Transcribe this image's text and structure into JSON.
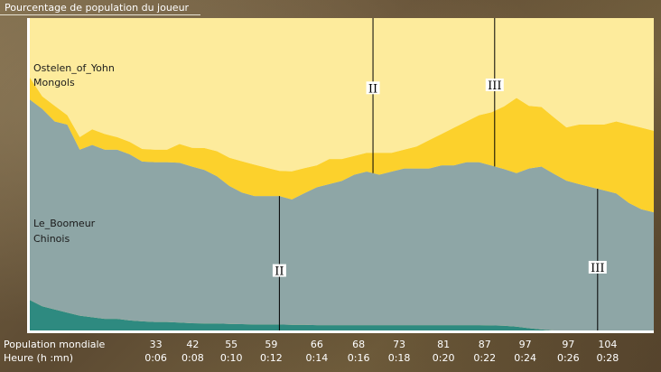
{
  "title": "Pourcentage de population du joueur",
  "chart_data": {
    "type": "area",
    "stacked": true,
    "ylim": [
      0,
      100
    ],
    "grid": false,
    "colors": {
      "background": "#fdeb9c",
      "band_light": "#fdeb9c",
      "band_gold": "#fcd12c",
      "band_gray": "#8ea6a6",
      "band_teal": "#2e8a80",
      "axis": "#ffffff",
      "marker": "#000000"
    },
    "x": [
      0,
      2,
      4,
      6,
      8,
      10,
      12,
      14,
      16,
      18,
      20,
      22,
      24,
      26,
      28,
      30,
      32,
      34,
      36,
      38,
      40,
      42,
      44,
      46,
      48,
      50,
      52,
      54,
      56,
      58,
      60,
      62,
      64,
      66,
      68,
      70,
      72,
      74,
      76,
      78,
      80,
      82,
      84,
      86,
      88,
      90,
      92,
      94,
      96,
      98,
      100
    ],
    "series": [
      {
        "color_key": "band_teal",
        "values": [
          10,
          8,
          7,
          6,
          5,
          4.5,
          4,
          4,
          3.5,
          3.2,
          3,
          3,
          2.8,
          2.6,
          2.5,
          2.5,
          2.4,
          2.3,
          2.2,
          2.2,
          2.2,
          2.1,
          2.1,
          2,
          2,
          2,
          2,
          2,
          2,
          2,
          2,
          2,
          2,
          2,
          2,
          2,
          2,
          1.9,
          1.8,
          1.5,
          1,
          0.6,
          0.3,
          0.1,
          0,
          0,
          0,
          0,
          0,
          0,
          0
        ]
      },
      {
        "color_key": "band_gray",
        "values": [
          64,
          63,
          60,
          60,
          53,
          55,
          54,
          54,
          53,
          51,
          51,
          51,
          51,
          50,
          49,
          47,
          44,
          42,
          41,
          41,
          41,
          40,
          42,
          44,
          45,
          46,
          48,
          49,
          48,
          49,
          50,
          50,
          50,
          51,
          51,
          52,
          52,
          51,
          50,
          49,
          51,
          52,
          50,
          48,
          47,
          46,
          45,
          44,
          41,
          39,
          38
        ]
      },
      {
        "color_key": "band_gold",
        "values": [
          7,
          4,
          5,
          3,
          4,
          5,
          5,
          4,
          4,
          4,
          4,
          4,
          6,
          6,
          7,
          8,
          9,
          10,
          10,
          9,
          8,
          9,
          8,
          7,
          8,
          7,
          6,
          6,
          7,
          6,
          6,
          7,
          9,
          10,
          12,
          13,
          15,
          17,
          20,
          24,
          20,
          19,
          18,
          17,
          19,
          20,
          21,
          23,
          25,
          26,
          26
        ]
      },
      {
        "color_key": "band_light",
        "values": [
          19,
          25,
          28,
          31,
          38,
          35.5,
          37,
          38,
          39.5,
          41.8,
          42,
          42,
          40.2,
          41.4,
          41.5,
          42.5,
          44.6,
          45.7,
          46.8,
          47.8,
          48.8,
          47.9,
          47.9,
          47,
          45,
          45,
          44,
          43,
          43,
          43,
          42,
          41,
          39,
          37,
          35,
          33,
          31,
          30.1,
          28.2,
          25.5,
          28,
          28.4,
          31.7,
          34.9,
          34,
          34,
          34,
          33,
          34,
          35,
          36
        ]
      }
    ],
    "player_labels": [
      {
        "name": "Ostelen_of_Yohn",
        "civ": "Mongols"
      },
      {
        "name": "Le_Boomeur",
        "civ": "Chinois"
      }
    ],
    "age_markers": [
      {
        "label": "II",
        "x": 55.0,
        "band": "top"
      },
      {
        "label": "III",
        "x": 74.5,
        "band": "top"
      },
      {
        "label": "II",
        "x": 40.0,
        "band": "bottom"
      },
      {
        "label": "III",
        "x": 91.0,
        "band": "bottom"
      }
    ],
    "bottom_rows": [
      {
        "label": "Population mondiale",
        "values": [
          "33",
          "42",
          "55",
          "59",
          "66",
          "68",
          "73",
          "81",
          "87",
          "97",
          "97",
          "104"
        ]
      },
      {
        "label": "Heure (h :mn)",
        "values": [
          "0:06",
          "0:08",
          "0:10",
          "0:12",
          "0:14",
          "0:16",
          "0:18",
          "0:20",
          "0:22",
          "0:24",
          "0:26",
          "0:28"
        ]
      }
    ],
    "tick_positions": [
      20.2,
      26.1,
      32.3,
      38.7,
      46.0,
      52.7,
      59.2,
      66.3,
      72.9,
      79.4,
      86.3,
      92.6
    ]
  }
}
